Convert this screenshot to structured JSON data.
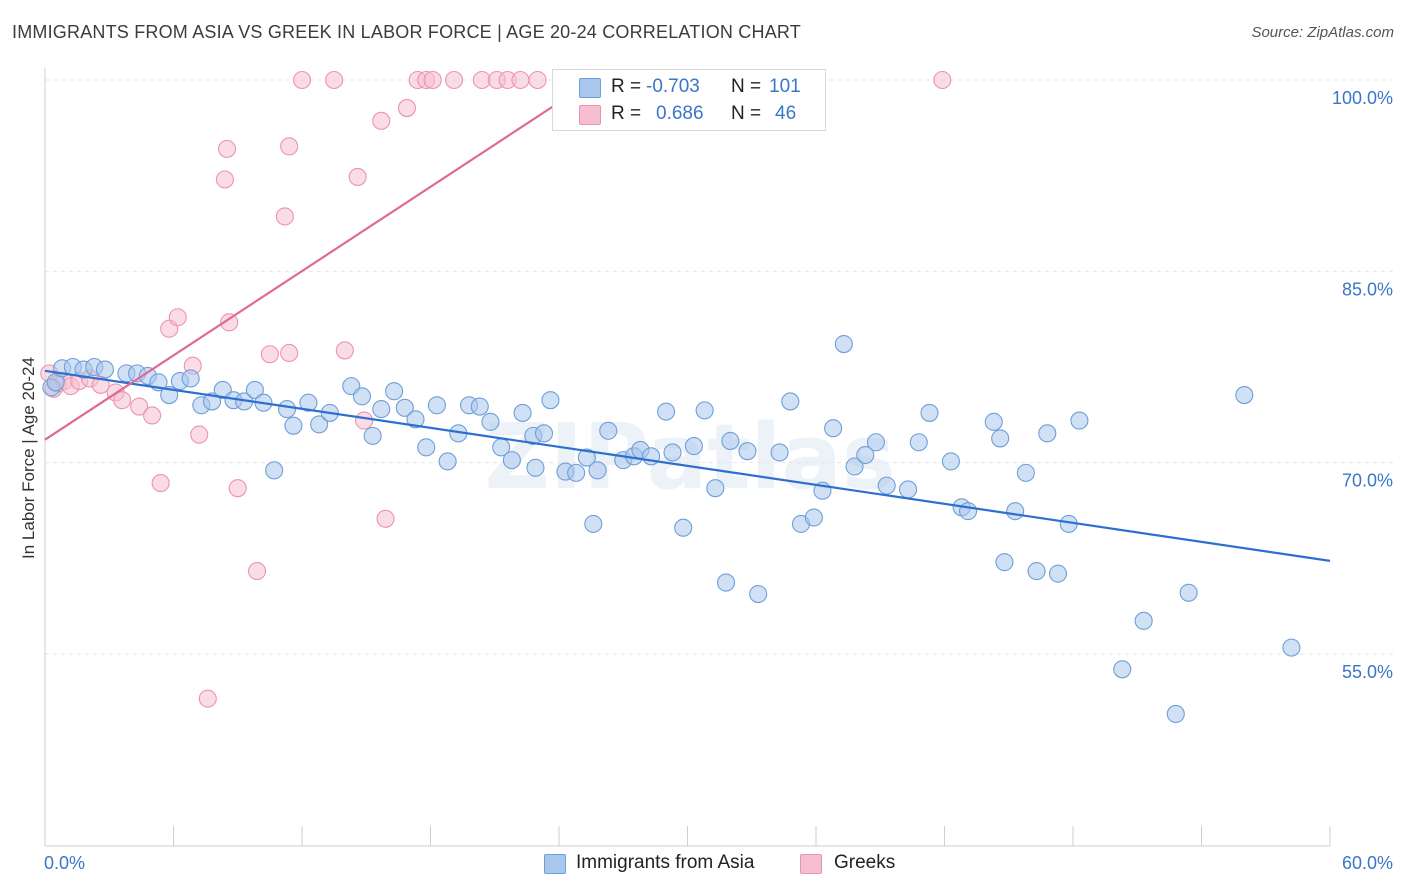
{
  "title": "IMMIGRANTS FROM ASIA VS GREEK IN LABOR FORCE | AGE 20-24 CORRELATION CHART",
  "source": "Source: ZipAtlas.com",
  "watermark": "ZIPatlas",
  "colors": {
    "blue_fill": "#a9c6ec",
    "blue_stroke": "#6f9fd8",
    "blue_line": "#2c6fd1",
    "pink_fill": "#f6bfd0",
    "pink_stroke": "#ec93b0",
    "pink_line": "#e06a93",
    "axis_label": "#3a76c9",
    "grid": "#e6e6e6"
  },
  "legend": {
    "rows": [
      {
        "r_label": "R =",
        "r_value": "-0.703",
        "n_label": "N =",
        "n_value": "101"
      },
      {
        "r_label": "R =",
        "r_value": "0.686",
        "n_label": "N =",
        "n_value": "46"
      }
    ],
    "bottom": [
      "Immigrants from Asia",
      "Greeks"
    ]
  },
  "chart_data": {
    "type": "scatter",
    "title": "IMMIGRANTS FROM ASIA VS GREEK IN LABOR FORCE | AGE 20-24 CORRELATION CHART",
    "xlabel": "",
    "ylabel": "In Labor Force | Age 20-24",
    "xlim": [
      0,
      60
    ],
    "ylim": [
      40,
      102
    ],
    "x_tick_labels": [
      "0.0%",
      "60.0%"
    ],
    "y_ticks": [
      55,
      70,
      85,
      100
    ],
    "y_tick_labels": [
      "55.0%",
      "70.0%",
      "85.0%",
      "100.0%"
    ],
    "grid": "horizontal dashed",
    "legend_position": "top-center",
    "series": [
      {
        "name": "Immigrants from Asia",
        "color": "#a9c6ec",
        "r": -0.703,
        "n": 101,
        "trend": {
          "x": [
            0,
            60
          ],
          "y": [
            77.2,
            62.3
          ]
        },
        "points": [
          [
            0.3,
            75.9
          ],
          [
            0.5,
            76.3
          ],
          [
            0.8,
            77.4
          ],
          [
            1.3,
            77.5
          ],
          [
            1.8,
            77.3
          ],
          [
            2.3,
            77.5
          ],
          [
            2.8,
            77.3
          ],
          [
            3.8,
            77.0
          ],
          [
            4.3,
            77.0
          ],
          [
            4.8,
            76.8
          ],
          [
            5.3,
            76.3
          ],
          [
            5.8,
            75.3
          ],
          [
            6.3,
            76.4
          ],
          [
            6.8,
            76.6
          ],
          [
            7.3,
            74.5
          ],
          [
            7.8,
            74.8
          ],
          [
            8.3,
            75.7
          ],
          [
            8.8,
            74.9
          ],
          [
            9.3,
            74.8
          ],
          [
            9.8,
            75.7
          ],
          [
            10.2,
            74.7
          ],
          [
            10.7,
            69.4
          ],
          [
            11.3,
            74.2
          ],
          [
            11.6,
            72.9
          ],
          [
            12.3,
            74.7
          ],
          [
            12.8,
            73.0
          ],
          [
            13.3,
            73.9
          ],
          [
            14.3,
            76.0
          ],
          [
            14.8,
            75.2
          ],
          [
            15.3,
            72.1
          ],
          [
            15.7,
            74.2
          ],
          [
            16.3,
            75.6
          ],
          [
            16.8,
            74.3
          ],
          [
            17.3,
            73.4
          ],
          [
            17.8,
            71.2
          ],
          [
            18.3,
            74.5
          ],
          [
            18.8,
            70.1
          ],
          [
            19.3,
            72.3
          ],
          [
            19.8,
            74.5
          ],
          [
            20.3,
            74.4
          ],
          [
            20.8,
            73.2
          ],
          [
            21.3,
            71.2
          ],
          [
            21.8,
            70.2
          ],
          [
            22.3,
            73.9
          ],
          [
            22.8,
            72.1
          ],
          [
            23.3,
            72.3
          ],
          [
            23.6,
            74.9
          ],
          [
            24.3,
            69.3
          ],
          [
            24.8,
            69.2
          ],
          [
            25.3,
            70.4
          ],
          [
            25.6,
            65.2
          ],
          [
            25.8,
            69.4
          ],
          [
            26.3,
            72.5
          ],
          [
            27.0,
            70.2
          ],
          [
            27.5,
            70.5
          ],
          [
            27.8,
            71.0
          ],
          [
            28.3,
            70.5
          ],
          [
            29.0,
            74.0
          ],
          [
            29.3,
            70.8
          ],
          [
            29.8,
            64.9
          ],
          [
            30.3,
            71.3
          ],
          [
            30.8,
            74.1
          ],
          [
            31.3,
            68.0
          ],
          [
            31.8,
            60.6
          ],
          [
            32.0,
            71.7
          ],
          [
            32.8,
            70.9
          ],
          [
            33.3,
            59.7
          ],
          [
            34.3,
            70.8
          ],
          [
            34.8,
            74.8
          ],
          [
            35.3,
            65.2
          ],
          [
            35.9,
            65.7
          ],
          [
            36.3,
            67.8
          ],
          [
            36.8,
            72.7
          ],
          [
            37.3,
            79.3
          ],
          [
            37.8,
            69.7
          ],
          [
            38.3,
            70.6
          ],
          [
            38.8,
            71.6
          ],
          [
            39.3,
            68.2
          ],
          [
            40.3,
            67.9
          ],
          [
            40.8,
            71.6
          ],
          [
            41.3,
            73.9
          ],
          [
            42.3,
            70.1
          ],
          [
            42.8,
            66.5
          ],
          [
            43.1,
            66.2
          ],
          [
            44.3,
            73.2
          ],
          [
            44.6,
            71.9
          ],
          [
            44.8,
            62.2
          ],
          [
            45.3,
            66.2
          ],
          [
            45.8,
            69.2
          ],
          [
            46.3,
            61.5
          ],
          [
            46.8,
            72.3
          ],
          [
            47.3,
            61.3
          ],
          [
            47.8,
            65.2
          ],
          [
            48.3,
            73.3
          ],
          [
            50.3,
            53.8
          ],
          [
            51.3,
            57.6
          ],
          [
            52.8,
            50.3
          ],
          [
            53.4,
            59.8
          ],
          [
            56.0,
            75.3
          ],
          [
            58.2,
            55.5
          ],
          [
            22.9,
            69.6
          ]
        ]
      },
      {
        "name": "Greeks",
        "color": "#f6bfd0",
        "r": 0.686,
        "n": 46,
        "trend": {
          "x": [
            0,
            25.6
          ],
          "y": [
            71.8,
            100.0
          ]
        },
        "points": [
          [
            0.2,
            77.0
          ],
          [
            0.4,
            75.8
          ],
          [
            0.6,
            76.2
          ],
          [
            0.9,
            76.4
          ],
          [
            1.2,
            76.0
          ],
          [
            1.6,
            76.4
          ],
          [
            2.1,
            76.6
          ],
          [
            2.6,
            76.1
          ],
          [
            3.3,
            75.5
          ],
          [
            3.6,
            74.9
          ],
          [
            4.4,
            74.4
          ],
          [
            5.0,
            73.7
          ],
          [
            5.4,
            68.4
          ],
          [
            5.8,
            80.5
          ],
          [
            6.2,
            81.4
          ],
          [
            6.9,
            77.6
          ],
          [
            7.2,
            72.2
          ],
          [
            7.6,
            51.5
          ],
          [
            8.4,
            92.2
          ],
          [
            8.5,
            94.6
          ],
          [
            8.6,
            81.0
          ],
          [
            9.0,
            68.0
          ],
          [
            9.9,
            61.5
          ],
          [
            10.5,
            78.5
          ],
          [
            11.2,
            89.3
          ],
          [
            11.4,
            78.6
          ],
          [
            11.4,
            94.8
          ],
          [
            12.0,
            100.0
          ],
          [
            13.5,
            100.0
          ],
          [
            14.0,
            78.8
          ],
          [
            14.6,
            92.4
          ],
          [
            14.9,
            73.3
          ],
          [
            15.7,
            96.8
          ],
          [
            15.9,
            65.6
          ],
          [
            16.9,
            97.8
          ],
          [
            17.4,
            100.0
          ],
          [
            17.8,
            100.0
          ],
          [
            18.1,
            100.0
          ],
          [
            19.1,
            100.0
          ],
          [
            20.4,
            100.0
          ],
          [
            21.1,
            100.0
          ],
          [
            21.6,
            100.0
          ],
          [
            22.2,
            100.0
          ],
          [
            23.0,
            100.0
          ],
          [
            24.1,
            100.0
          ],
          [
            41.9,
            100.0
          ]
        ]
      }
    ]
  }
}
